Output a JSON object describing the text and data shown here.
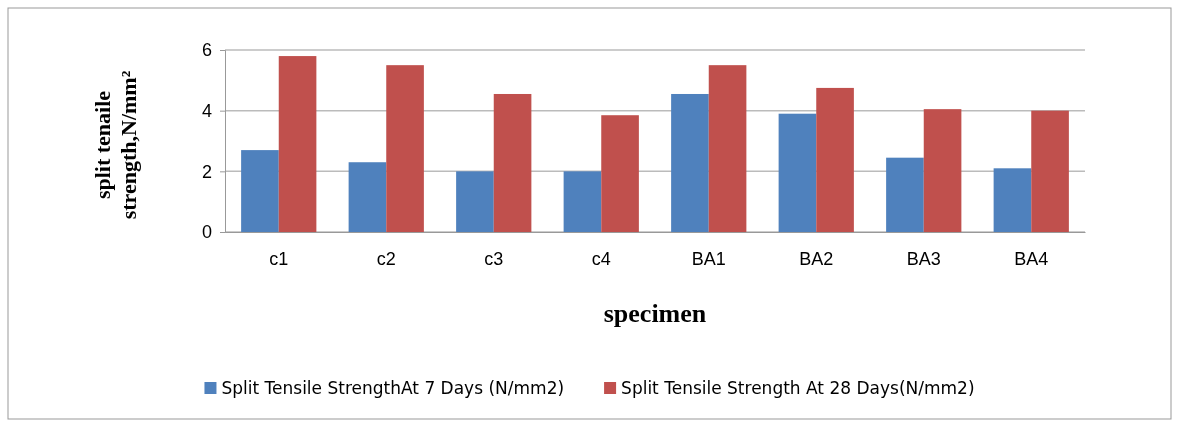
{
  "chart_data": {
    "type": "bar",
    "xlabel": "specimen",
    "ylabel": "split tenaile strength,N/mm²",
    "categories": [
      "c1",
      "c2",
      "c3",
      "c4",
      "BA1",
      "BA2",
      "BA3",
      "BA4"
    ],
    "series": [
      {
        "name": "Split Tensile StrengthAt 7 Days (N/mm2)",
        "color": "#4f81bd",
        "values": [
          2.7,
          2.3,
          2.0,
          2.0,
          4.55,
          3.9,
          2.45,
          2.1
        ]
      },
      {
        "name": "Split Tensile Strength At 28 Days(N/mm2)",
        "color": "#c0504d",
        "values": [
          5.8,
          5.5,
          4.55,
          3.85,
          5.5,
          4.75,
          4.05,
          4.0
        ]
      }
    ],
    "ylim": [
      0,
      6
    ],
    "yticks": [
      0,
      2,
      4,
      6
    ],
    "grid": "y",
    "legend": "bottom"
  }
}
